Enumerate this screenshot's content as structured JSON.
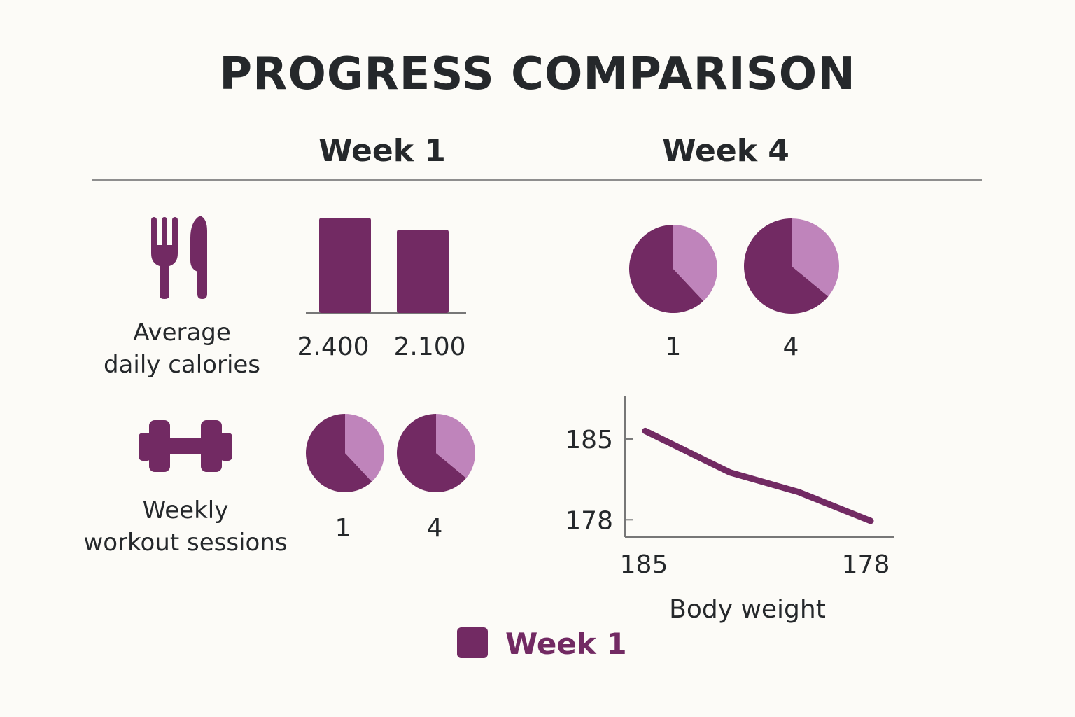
{
  "title": "PROGRESS COMPARISON",
  "columns": [
    "Week 1",
    "Week 4"
  ],
  "colors": {
    "primary": "#722a63",
    "light": "#bf84bb",
    "text": "#25282b"
  },
  "rows": {
    "calories": {
      "label_line1": "Average",
      "label_line2": "daily calories",
      "icon": "fork-knife-icon"
    },
    "workouts": {
      "label_line1": "Weekly",
      "label_line2": "workout sessions",
      "icon": "dumbbell-icon"
    }
  },
  "legend": {
    "label": "Week 1"
  },
  "chart_data": [
    {
      "type": "bar",
      "name": "Average daily calories",
      "categories": [
        "2.400",
        "2.100"
      ],
      "values": [
        2400,
        2100
      ],
      "ylim": [
        0,
        2600
      ]
    },
    {
      "type": "pie",
      "name": "Week 4 - calories",
      "categories": [
        "1",
        "4"
      ],
      "slices": [
        {
          "label": "1",
          "values": [
            62,
            38
          ]
        },
        {
          "label": "4",
          "values": [
            64,
            36
          ]
        }
      ]
    },
    {
      "type": "pie",
      "name": "Weekly workout sessions",
      "categories": [
        "1",
        "4"
      ],
      "slices": [
        {
          "label": "1",
          "values": [
            62,
            38
          ]
        },
        {
          "label": "4",
          "values": [
            64,
            36
          ]
        }
      ]
    },
    {
      "type": "line",
      "xlabel": "Body weight",
      "x_ticks": [
        "185",
        "178"
      ],
      "y_ticks": [
        185,
        178
      ],
      "x": [
        0,
        1,
        2,
        3
      ],
      "y": [
        185.7,
        182.1,
        180.4,
        177.9
      ],
      "ylim": [
        176.5,
        188.7
      ]
    }
  ]
}
